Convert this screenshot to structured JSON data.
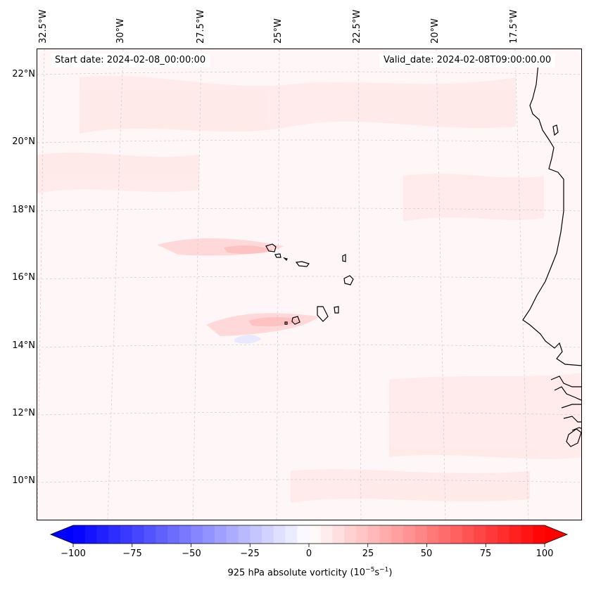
{
  "header": {
    "start_date": "Start date: 2024-02-08_00:00:00",
    "valid_date": "Valid_date: 2024-02-08T09:00:00.00"
  },
  "map": {
    "longitude_labels": [
      "32.5°W",
      "30°W",
      "27.5°W",
      "25°W",
      "22.5°W",
      "20°W",
      "17.5°W"
    ],
    "latitude_labels": [
      "22°N",
      "20°N",
      "18°N",
      "16°N",
      "14°N",
      "12°N",
      "10°N"
    ],
    "background_color": "#fff7f7",
    "coast_color": "#000000",
    "grid_color": "#cccccc"
  },
  "colorbar": {
    "variable": "925 hPa absolute vorticity",
    "units_base": "(10",
    "units_exp1": "−5",
    "units_mid": "s",
    "units_exp2": "−1",
    "units_end": ")",
    "min": -100,
    "max": 100,
    "ticks": [
      "−100",
      "−75",
      "−50",
      "−25",
      "0",
      "25",
      "50",
      "75",
      "100"
    ],
    "tick_values": [
      -100,
      -75,
      -50,
      -25,
      0,
      25,
      50,
      75,
      100
    ],
    "low_color": "#0000ff",
    "mid_color": "#ffffff",
    "high_color": "#ff0000",
    "levels": 40
  }
}
